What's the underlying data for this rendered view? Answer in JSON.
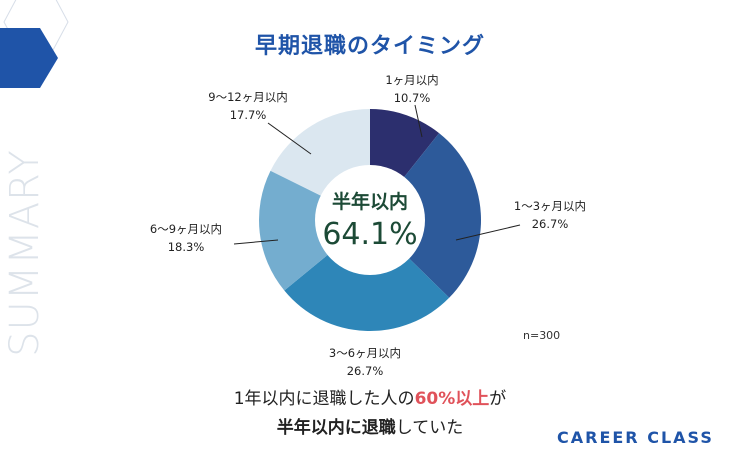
{
  "watermark": "SUMMARY",
  "brand": "CAREER CLASS",
  "colors": {
    "brand_blue": "#1f54a8",
    "highlight": "#e0525a",
    "center_text": "#1c4a36"
  },
  "chart_data": {
    "type": "pie",
    "title": "早期退職のタイミング",
    "donut": true,
    "center_label": "半年以内",
    "center_value": "64.1%",
    "note": "n=300",
    "categories": [
      "1ヶ月以内",
      "1〜3ヶ月以内",
      "3〜6ヶ月以内",
      "6〜9ヶ月以内",
      "9〜12ヶ月以内"
    ],
    "values": [
      10.7,
      26.7,
      26.7,
      18.3,
      17.7
    ],
    "value_labels": [
      "10.7%",
      "26.7%",
      "26.7%",
      "18.3%",
      "17.7%"
    ],
    "colors": [
      "#2c2f6e",
      "#2d5a9a",
      "#2e86b8",
      "#74adcf",
      "#dbe7f0"
    ]
  },
  "caption": {
    "line1_a": "1年以内に退職した人の",
    "line1_highlight": "60%以上",
    "line1_b": "が",
    "line2_bold": "半年以内に退職",
    "line2_rest": "していた"
  }
}
